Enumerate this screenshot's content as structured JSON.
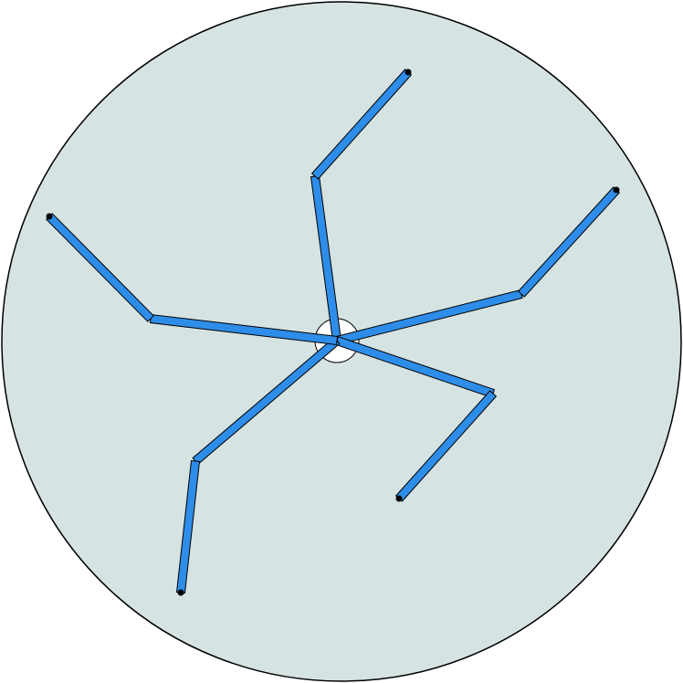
{
  "colors": {
    "disc_fill": "#d6e3e3",
    "disc_stroke": "#000000",
    "limb_fill": "#2e8de8",
    "limb_stroke": "#000000",
    "hub_fill": "#ffffff",
    "tip_fill": "#000000"
  },
  "icons": {
    "tip": "endpoint-dot-icon",
    "hub": "central-hub-icon"
  },
  "limbs": [
    {
      "name": "limb-upper-center"
    },
    {
      "name": "limb-right"
    },
    {
      "name": "limb-lower-right"
    },
    {
      "name": "limb-lower-left"
    },
    {
      "name": "limb-left"
    }
  ]
}
